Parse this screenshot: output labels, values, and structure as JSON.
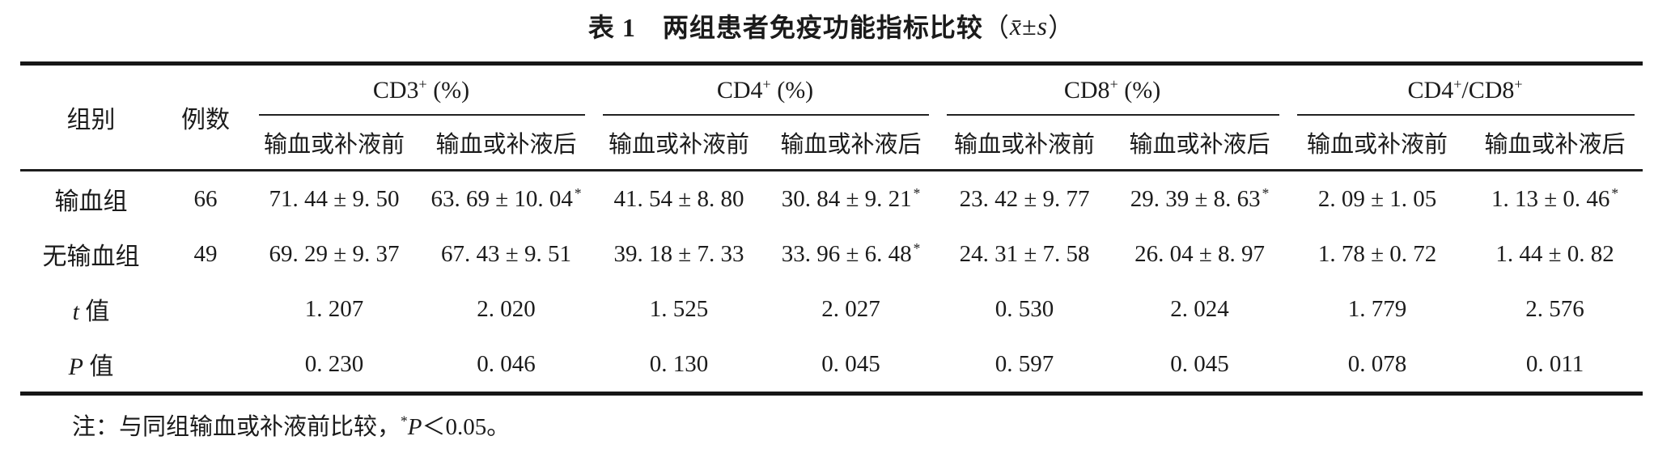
{
  "page": {
    "background": "#ffffff",
    "text_color": "#1b1b1b",
    "rule_color": "#161616"
  },
  "title": {
    "parts": [
      {
        "text": "表 1　两组患者免疫功能指标比较",
        "bold": true
      },
      {
        "text": "（"
      },
      {
        "text": "x̄",
        "italic": true
      },
      {
        "text": "±"
      },
      {
        "text": "s",
        "italic": true
      },
      {
        "text": "）"
      }
    ]
  },
  "table": {
    "corner": {
      "group_label": "组别",
      "n_label": "例数"
    },
    "star_symbol": "*",
    "groups": [
      {
        "id": "cd3",
        "parts": [
          {
            "text": "CD3"
          },
          {
            "text": "+",
            "sup": true
          },
          {
            "text": " (%)"
          }
        ],
        "sub": [
          "输血或补液前",
          "输血或补液后"
        ]
      },
      {
        "id": "cd4",
        "parts": [
          {
            "text": "CD4"
          },
          {
            "text": "+",
            "sup": true
          },
          {
            "text": " (%)"
          }
        ],
        "sub": [
          "输血或补液前",
          "输血或补液后"
        ]
      },
      {
        "id": "cd8",
        "parts": [
          {
            "text": "CD8"
          },
          {
            "text": "+",
            "sup": true
          },
          {
            "text": " (%)"
          }
        ],
        "sub": [
          "输血或补液前",
          "输血或补液后"
        ]
      },
      {
        "id": "cd4-cd8-ratio",
        "parts": [
          {
            "text": "CD4"
          },
          {
            "text": "+",
            "sup": true
          },
          {
            "text": "/CD8"
          },
          {
            "text": "+",
            "sup": true
          }
        ],
        "sub": [
          "输血或补液前",
          "输血或补液后"
        ]
      }
    ],
    "rows": [
      {
        "id": "transfusion-group",
        "label_parts": [
          {
            "text": "输血组"
          }
        ],
        "n": "66",
        "cells": [
          {
            "text": "71. 44 ± 9. 50",
            "star": false
          },
          {
            "text": "63. 69 ± 10. 04",
            "star": true
          },
          {
            "text": "41. 54 ± 8. 80",
            "star": false
          },
          {
            "text": "30. 84 ± 9. 21",
            "star": true
          },
          {
            "text": "23. 42 ± 9. 77",
            "star": false
          },
          {
            "text": "29. 39 ± 8. 63",
            "star": true
          },
          {
            "text": "2. 09 ± 1. 05",
            "star": false
          },
          {
            "text": "1. 13 ± 0. 46",
            "star": true
          }
        ]
      },
      {
        "id": "no-transfusion-group",
        "label_parts": [
          {
            "text": "无输血组"
          }
        ],
        "n": "49",
        "cells": [
          {
            "text": "69. 29 ± 9. 37",
            "star": false
          },
          {
            "text": "67. 43 ± 9. 51",
            "star": false
          },
          {
            "text": "39. 18 ± 7. 33",
            "star": false
          },
          {
            "text": "33. 96 ± 6. 48",
            "star": true
          },
          {
            "text": "24. 31 ± 7. 58",
            "star": false
          },
          {
            "text": "26. 04 ± 8. 97",
            "star": false
          },
          {
            "text": "1. 78 ± 0. 72",
            "star": false
          },
          {
            "text": "1. 44 ± 0. 82",
            "star": false
          }
        ]
      },
      {
        "id": "t-value",
        "label_parts": [
          {
            "text": "t",
            "italic": true
          },
          {
            "text": " 值"
          }
        ],
        "n": "",
        "cells": [
          {
            "text": "1. 207"
          },
          {
            "text": "2. 020"
          },
          {
            "text": "1. 525"
          },
          {
            "text": "2. 027"
          },
          {
            "text": "0. 530"
          },
          {
            "text": "2. 024"
          },
          {
            "text": "1. 779"
          },
          {
            "text": "2. 576"
          }
        ]
      },
      {
        "id": "p-value",
        "label_parts": [
          {
            "text": "P",
            "italic": true
          },
          {
            "text": " 值"
          }
        ],
        "n": "",
        "cells": [
          {
            "text": "0. 230"
          },
          {
            "text": "0. 046"
          },
          {
            "text": "0. 130"
          },
          {
            "text": "0. 045"
          },
          {
            "text": "0. 597"
          },
          {
            "text": "0. 045"
          },
          {
            "text": "0. 078"
          },
          {
            "text": "0. 011"
          }
        ]
      }
    ]
  },
  "footnote": {
    "parts": [
      {
        "text": "注：与同组输血或补液前比较，"
      },
      {
        "text": "*",
        "sup": true
      },
      {
        "text": "P",
        "italic": true
      },
      {
        "text": "＜0.05。"
      }
    ]
  }
}
